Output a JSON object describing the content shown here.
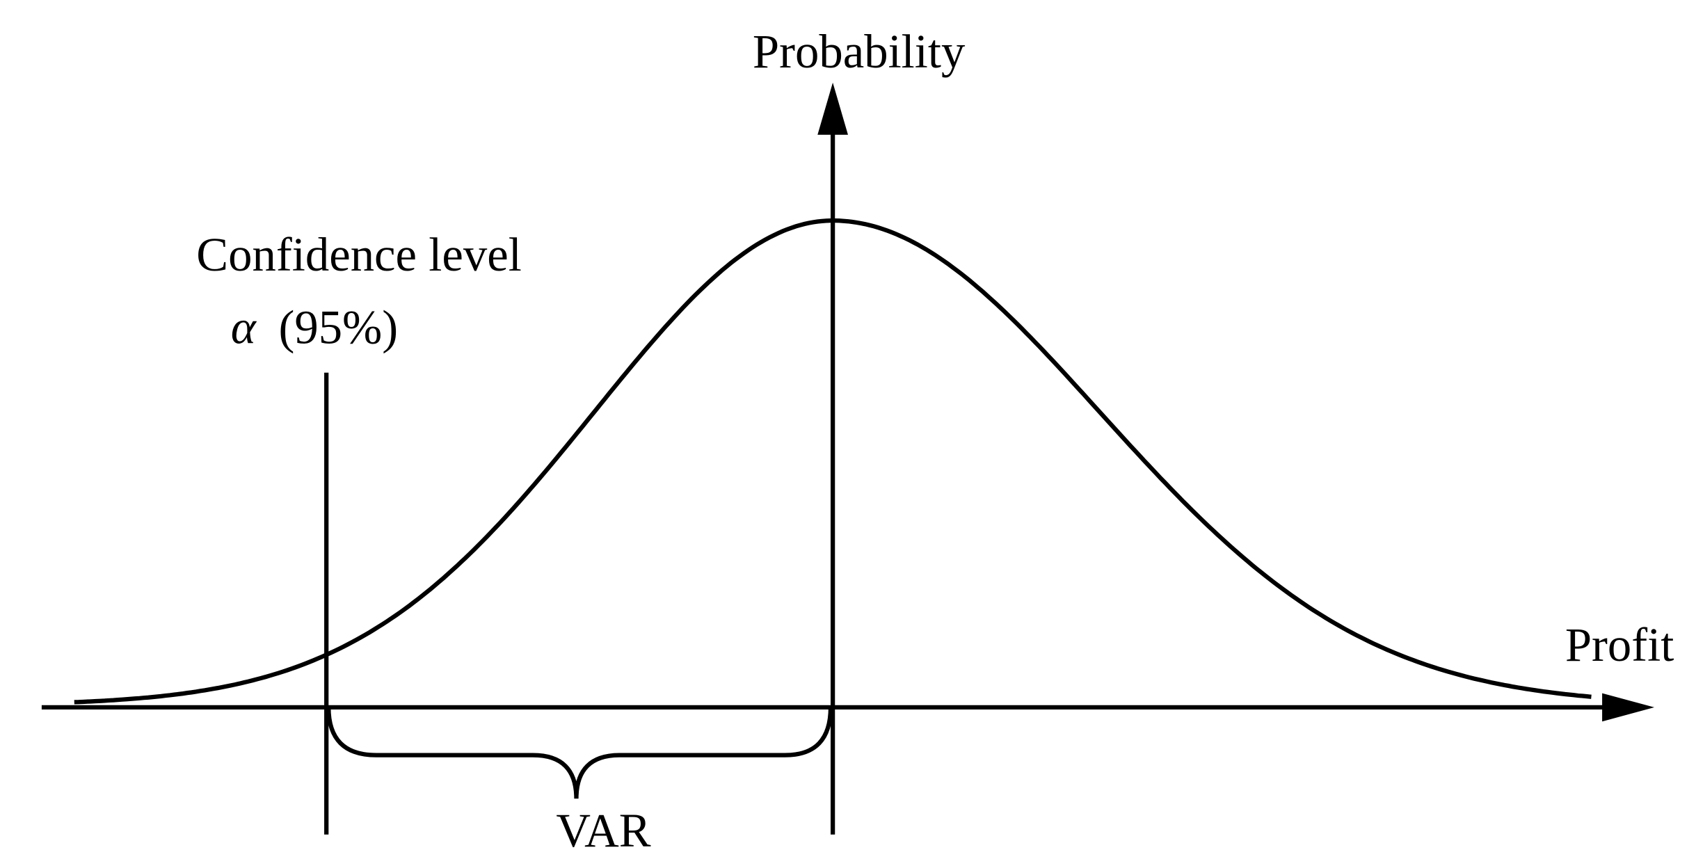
{
  "axes": {
    "y_label": "Probability",
    "x_label": "Profit"
  },
  "annotation": {
    "line1": "Confidence level",
    "symbol": "α",
    "value": "(95%)"
  },
  "brace_label": "VAR"
}
